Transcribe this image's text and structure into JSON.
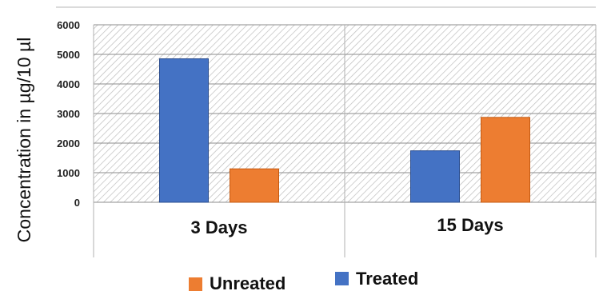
{
  "chart_data": {
    "type": "bar",
    "categories": [
      "3 Days",
      "15 Days"
    ],
    "series": [
      {
        "name": "Treated",
        "values": [
          4850,
          1740
        ],
        "color": "#4472C4"
      },
      {
        "name": "Unreated",
        "values": [
          1130,
          2870
        ],
        "color": "#ED7D31"
      }
    ],
    "ylabel": "Concentration in µg/10 µl",
    "xlabel": "",
    "title": "",
    "ylim": [
      0,
      6000
    ],
    "yticks": [
      0,
      1000,
      2000,
      3000,
      4000,
      5000,
      6000
    ],
    "grid": true,
    "plot_background": "hatched",
    "legend_position": "bottom",
    "legend_order": [
      "Unreated",
      "Treated"
    ]
  }
}
